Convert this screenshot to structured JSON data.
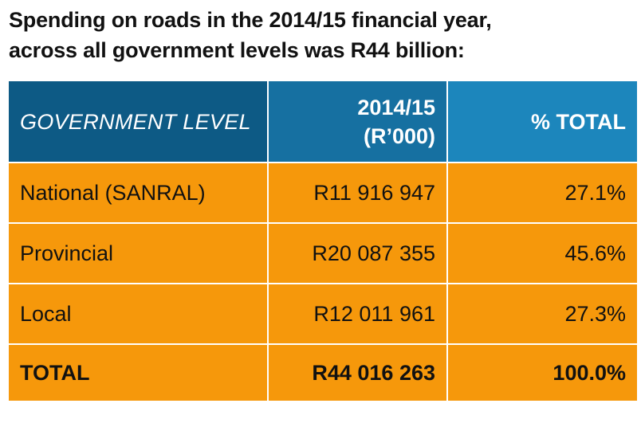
{
  "title": {
    "line1": "Spending on roads in the 2014/15 financial year,",
    "line2": "across all government levels was R44 billion:"
  },
  "table": {
    "headers": {
      "level": "GOVERNMENT LEVEL",
      "year_line1": "2014/15",
      "year_line2": "(R’000)",
      "percent": "% TOTAL"
    },
    "rows": [
      {
        "level": "National (SANRAL)",
        "amount": "R11 916 947",
        "percent": "27.1%"
      },
      {
        "level": "Provincial",
        "amount": "R20 087 355",
        "percent": "45.6%"
      },
      {
        "level": "Local",
        "amount": "R12 011 961",
        "percent": "27.3%"
      }
    ],
    "total": {
      "level": "TOTAL",
      "amount": "R44 016 263",
      "percent": "100.0%"
    }
  },
  "colors": {
    "header_level_bg": "#0d5a85",
    "header_year_bg": "#1670a1",
    "header_percent_bg": "#1c86bc",
    "row_bg": "#f6980b",
    "header_text": "#ffffff",
    "body_text": "#111111"
  }
}
